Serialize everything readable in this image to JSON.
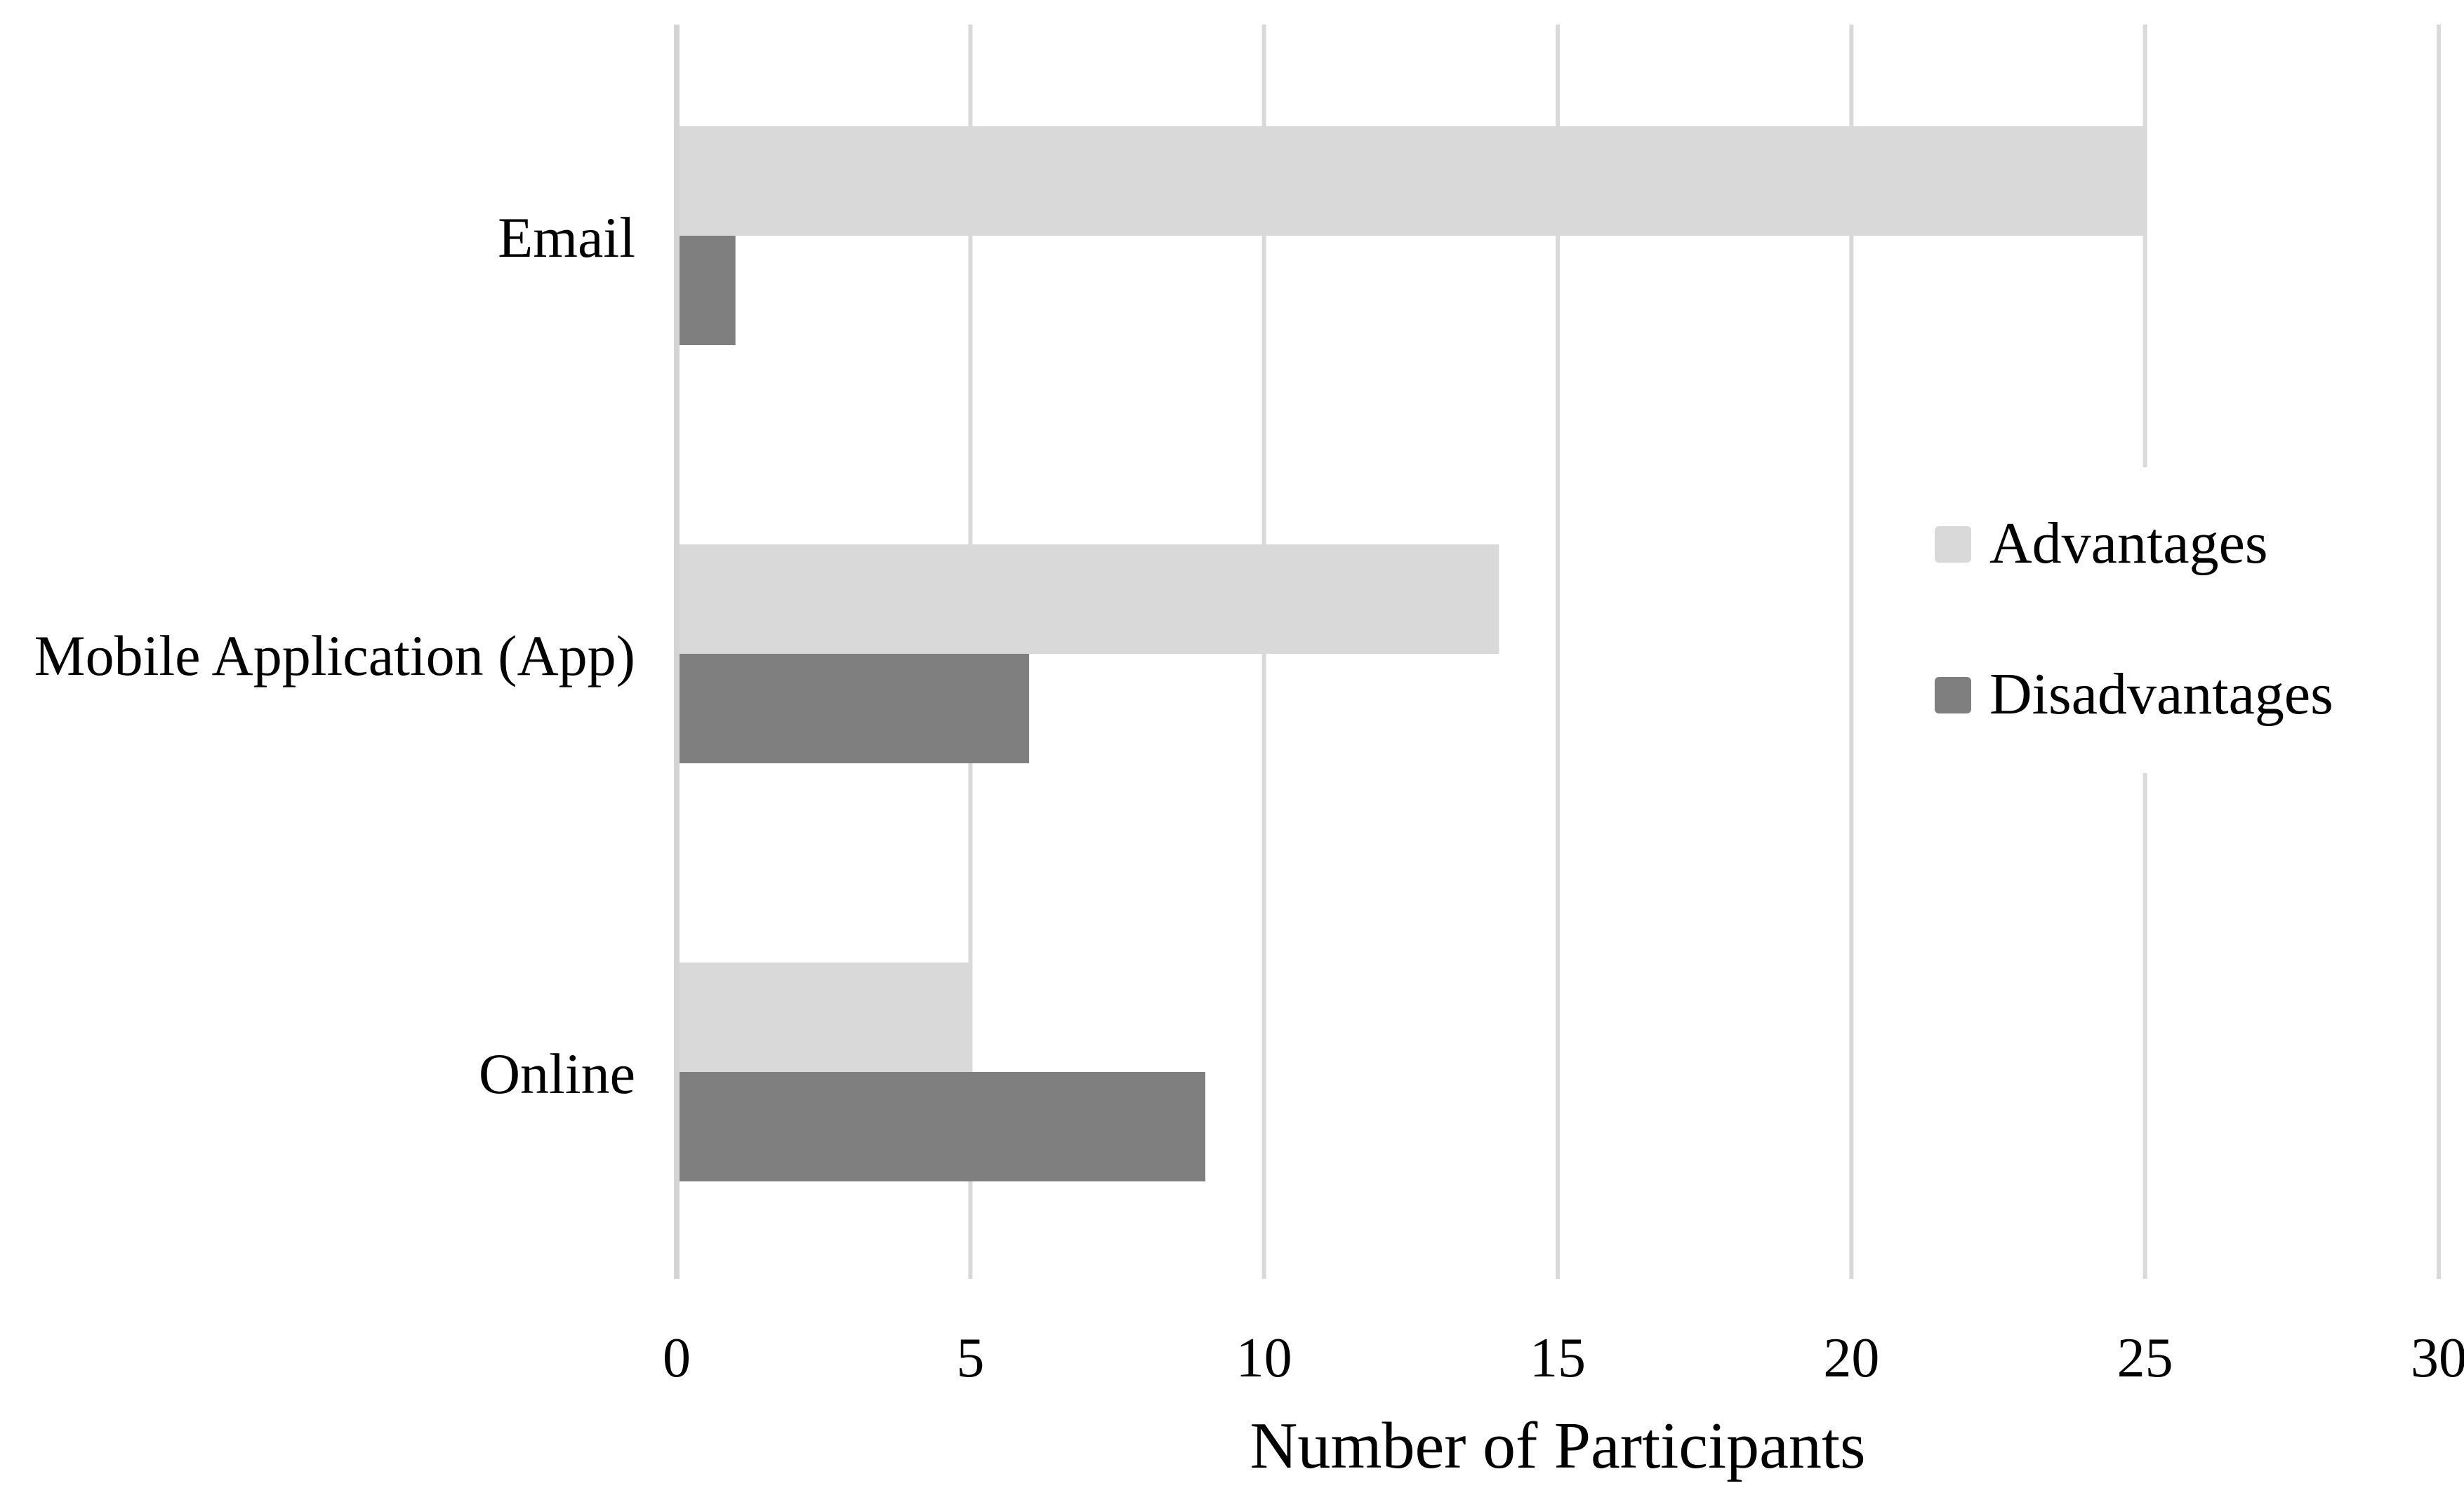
{
  "chart_data": {
    "type": "bar",
    "orientation": "horizontal",
    "title": "",
    "categories": [
      "Email",
      "Mobile Application (App)",
      "Online"
    ],
    "series": [
      {
        "name": "Advantages",
        "color": "#d9d9d9",
        "values": [
          25,
          14,
          5
        ]
      },
      {
        "name": "Disadvantages",
        "color": "#7f7f7f",
        "values": [
          1,
          6,
          9
        ]
      }
    ],
    "xlabel": "Number of Participants",
    "ylabel": "",
    "xlim": [
      0,
      30
    ],
    "xticks": [
      0,
      5,
      10,
      15,
      20,
      25,
      30
    ],
    "grid": "vertical-gridlines-on",
    "legend_position": "inside-right",
    "colors": {
      "gridline": "#d9d9d9",
      "axis_line": "#d4d4d4",
      "text": "#000000",
      "background": "#ffffff",
      "legend_background": "#ffffff"
    }
  }
}
